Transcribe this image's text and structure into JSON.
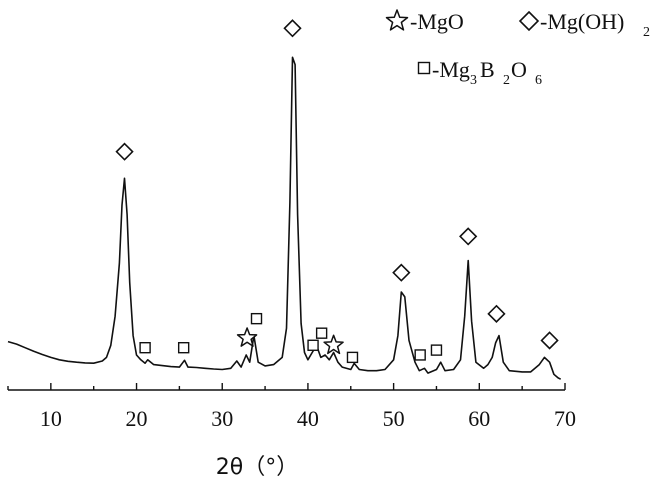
{
  "chart_data": {
    "type": "line",
    "title": "",
    "xlabel": "2θ（°）",
    "ylabel": "",
    "xlim": [
      5,
      70
    ],
    "x_ticks": [
      "10",
      "20",
      "30",
      "40",
      "50",
      "60",
      "70"
    ],
    "grid": false,
    "legend_position": "top-right",
    "line_color": "#111111",
    "series": [
      {
        "name": "",
        "x": [
          5,
          6,
          7,
          8,
          9,
          10,
          11,
          12,
          13,
          14,
          15,
          16,
          16.5,
          17,
          17.5,
          18,
          18.3,
          18.6,
          18.9,
          19.2,
          19.6,
          20,
          20.5,
          21,
          21.3,
          22,
          23,
          24,
          25,
          25.6,
          26,
          27,
          28,
          29,
          30,
          31,
          31.7,
          32.2,
          32.8,
          33.2,
          33.7,
          34.2,
          35,
          36,
          37,
          37.5,
          37.9,
          38.2,
          38.5,
          38.8,
          39.2,
          39.6,
          40,
          40.5,
          41,
          41.5,
          42,
          42.5,
          43,
          43.5,
          44,
          45,
          45.4,
          46,
          47,
          48,
          49,
          50,
          50.5,
          50.9,
          51.3,
          51.8,
          52.5,
          53,
          53.6,
          54,
          55,
          55.5,
          56,
          57,
          57.8,
          58.3,
          58.7,
          59.1,
          59.6,
          60.5,
          61,
          61.5,
          61.9,
          62.3,
          62.8,
          63.5,
          65,
          66,
          67,
          67.6,
          68.2,
          68.7,
          69.2,
          69.5
        ],
        "values": [
          17.5,
          16.5,
          15,
          13.5,
          12.2,
          11,
          10,
          9.4,
          9,
          8.7,
          8.6,
          9.5,
          11,
          16,
          28,
          50,
          74,
          85,
          70,
          42,
          20,
          12,
          10,
          8.6,
          10,
          8,
          7.6,
          7.2,
          7,
          9.8,
          7,
          6.8,
          6.5,
          6.2,
          6,
          6.5,
          9.5,
          7,
          12,
          9,
          20,
          9,
          7.5,
          8,
          11,
          23,
          75,
          135,
          132,
          70,
          25,
          13,
          10,
          13,
          16,
          11,
          12,
          10,
          13,
          9,
          7,
          6,
          8.5,
          6,
          5.5,
          5.5,
          6,
          10,
          20,
          38,
          36,
          18,
          9,
          5.5,
          6.5,
          4.5,
          6,
          9,
          5.5,
          6,
          10,
          28,
          51,
          26,
          9,
          6.5,
          8,
          11,
          17,
          20,
          9,
          5.5,
          5,
          5,
          8,
          11,
          9,
          4,
          2.5,
          2
        ]
      }
    ],
    "phase_markers": [
      {
        "shape": "diamond",
        "x": 18.6,
        "y": 96
      },
      {
        "shape": "diamond",
        "x": 38.2,
        "y": 147
      },
      {
        "shape": "diamond",
        "x": 50.9,
        "y": 46
      },
      {
        "shape": "diamond",
        "x": 58.7,
        "y": 61
      },
      {
        "shape": "diamond",
        "x": 62.0,
        "y": 29
      },
      {
        "shape": "diamond",
        "x": 68.2,
        "y": 18
      },
      {
        "shape": "star",
        "x": 32.9,
        "y": 19
      },
      {
        "shape": "star",
        "x": 43.0,
        "y": 16
      },
      {
        "shape": "square",
        "x": 21.0,
        "y": 15
      },
      {
        "shape": "square",
        "x": 25.5,
        "y": 15
      },
      {
        "shape": "square",
        "x": 34.0,
        "y": 27
      },
      {
        "shape": "square",
        "x": 40.6,
        "y": 16
      },
      {
        "shape": "square",
        "x": 41.6,
        "y": 21
      },
      {
        "shape": "square",
        "x": 45.2,
        "y": 11
      },
      {
        "shape": "square",
        "x": 53.1,
        "y": 12
      },
      {
        "shape": "square",
        "x": 55.0,
        "y": 14
      }
    ],
    "legend": [
      {
        "shape": "star",
        "label": "-MgO"
      },
      {
        "shape": "diamond",
        "label": "-Mg(OH)",
        "subscript": "2"
      },
      {
        "shape": "square",
        "label": "-Mg",
        "subscripts": [
          "3",
          "2",
          "6"
        ],
        "formula_parts": [
          "-Mg",
          "B",
          "O"
        ]
      }
    ]
  }
}
